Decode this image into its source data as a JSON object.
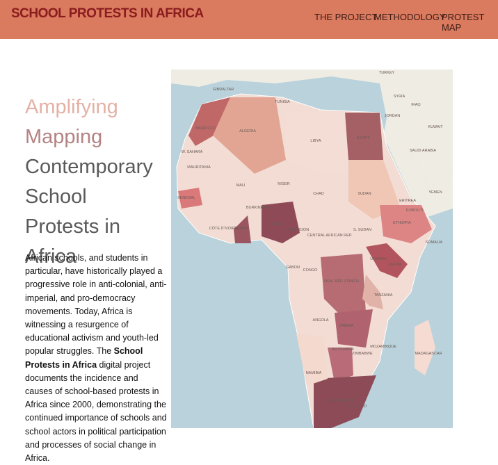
{
  "header": {
    "title": "SCHOOL PROTESTS IN AFRICA",
    "nav": [
      "THE PROJECT",
      "METHODOLOGY",
      "PROTEST MAP"
    ]
  },
  "hero": {
    "lines": [
      "Amplifying",
      "Mapping",
      "Contemporary School Protests in Africa"
    ],
    "paragraph": {
      "before": "African schools, and students in particular, have historically played a progressive role in anti-colonial, anti-imperial, and pro-democracy movements. Today, Africa is witnessing a resurgence of educational activism and youth-led popular struggles. The ",
      "bold": "School Protests in Africa",
      "after": " digital project documents the incidence and causes of school-based protests in Africa since 2000, demonstrating the continued importance of schools and school actors in political participation and processes of social change in Africa."
    }
  },
  "map": {
    "labels": [
      "TURKEY",
      "SYRIA",
      "IRAQ",
      "JORDAN",
      "KUWAIT",
      "SAUDI ARABIA",
      "YEMEN",
      "GIBRALTAR",
      "MOROCCO",
      "TUNISIA",
      "ALGERIA",
      "LIBYA",
      "EGYPT",
      "W. SAHARA",
      "MAURITANIA",
      "MALI",
      "NIGER",
      "CHAD",
      "SUDAN",
      "SENEGAL",
      "BURKINA FASO",
      "CÔTE D'IVOIRE",
      "GHANA",
      "NIGERIA",
      "CAMEROON",
      "CENTRAL AFRICAN REP.",
      "S. SUDAN",
      "ETHIOPIA",
      "ERITREA",
      "SOMALIA",
      "UGANDA",
      "KENYA",
      "GABON",
      "CONGO",
      "DEM. REP. CONGO",
      "TANZANIA",
      "ANGOLA",
      "ZAMBIA",
      "ZIMBABWE",
      "MOZAMBIQUE",
      "NAMIBIA",
      "BOTSWANA",
      "SOUTH AFRICA",
      "MADAGASCAR",
      "LESOTHO",
      "DJIBOUTI"
    ]
  }
}
